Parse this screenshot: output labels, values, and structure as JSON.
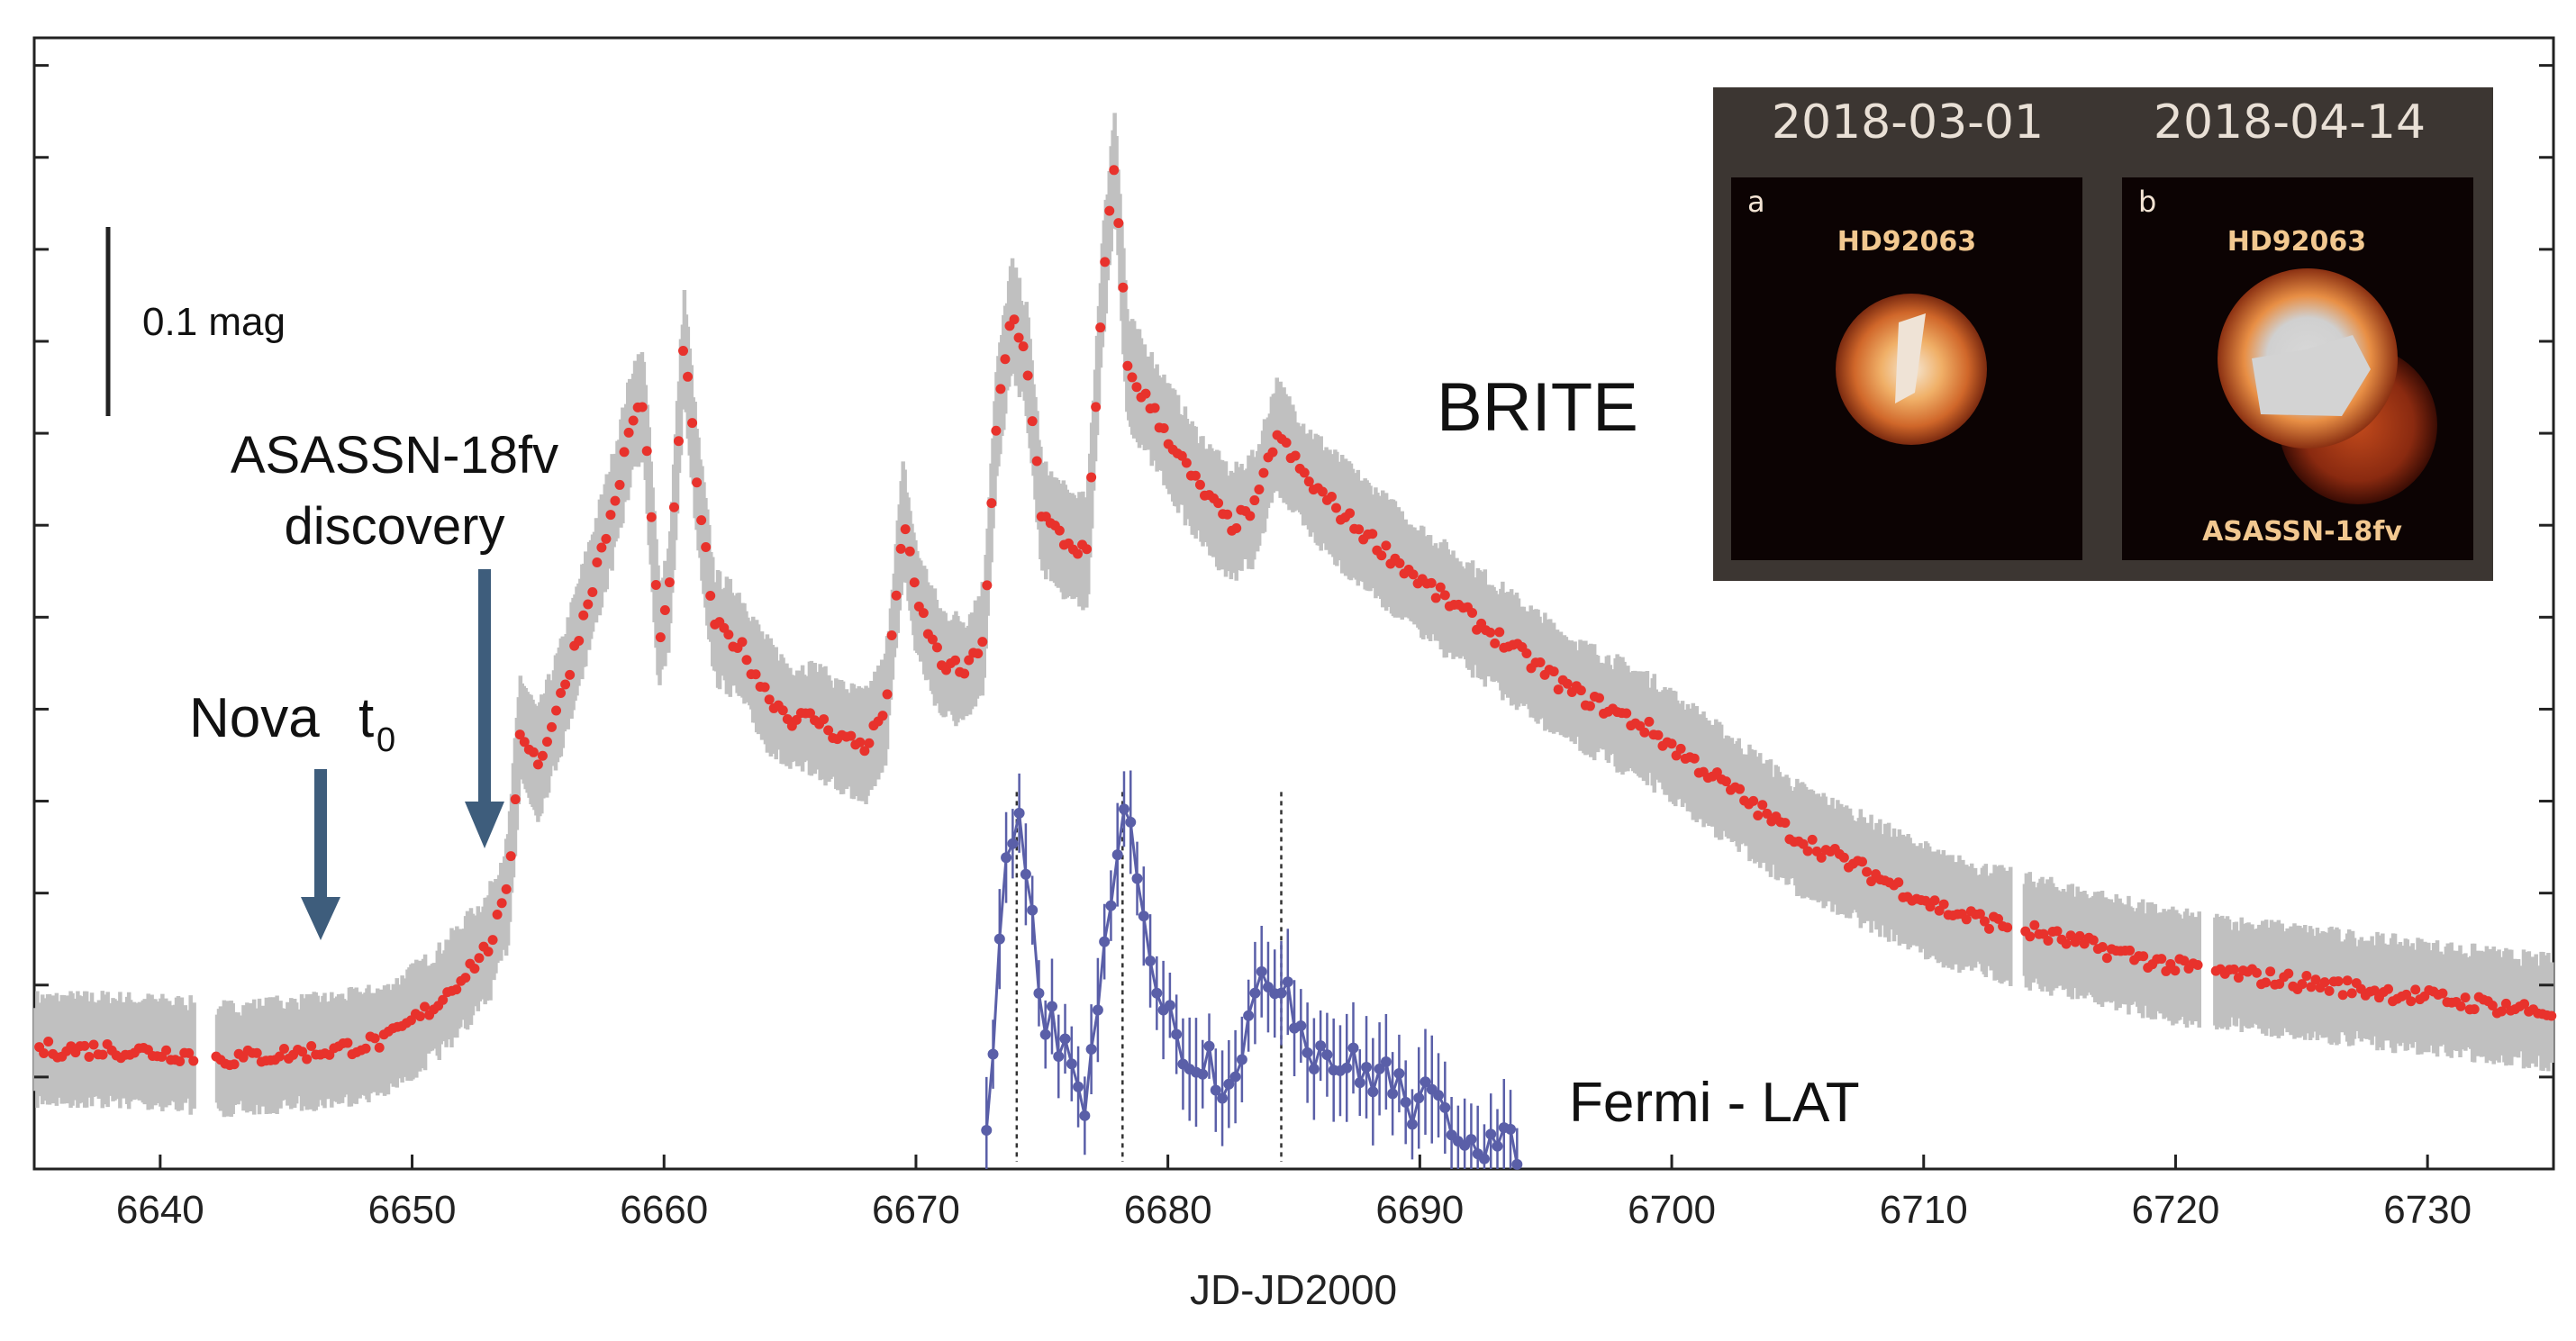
{
  "chart_data": {
    "type": "scatter",
    "xlabel": "JD-JD2000",
    "xlim": [
      6635,
      6735
    ],
    "x_ticks": [
      6640,
      6650,
      6660,
      6670,
      6680,
      6690,
      6700,
      6710,
      6720,
      6730
    ],
    "ylim": [
      0,
      1.23
    ],
    "y_axis_tick_labels": "none",
    "grid": false,
    "scale_bar_label": "0.1 mag",
    "brite_label": "BRITE",
    "fermi_label": "Fermi - LAT",
    "annotations": {
      "nova_t0": {
        "text": "Nova",
        "subscript_base": "t",
        "subscript": "0",
        "x": 6646
      },
      "discovery": {
        "line1": "ASASSN-18fv",
        "line2": "discovery",
        "x": 6653
      }
    },
    "fermi_peak_markers": [
      6674,
      6678.2,
      6684.5
    ],
    "series": [
      {
        "name": "BRITE",
        "color": "#e8322c",
        "band_color": "#c0c0c0",
        "points": [
          [
            6635,
            0.13
          ],
          [
            6638,
            0.13
          ],
          [
            6641,
            0.125
          ],
          [
            6642,
            0.12
          ],
          [
            6643,
            0.12
          ],
          [
            6645,
            0.125
          ],
          [
            6647,
            0.13
          ],
          [
            6649,
            0.14
          ],
          [
            6650,
            0.16
          ],
          [
            6651,
            0.18
          ],
          [
            6652,
            0.21
          ],
          [
            6653,
            0.24
          ],
          [
            6653.8,
            0.3
          ],
          [
            6654.3,
            0.48
          ],
          [
            6655,
            0.44
          ],
          [
            6656,
            0.52
          ],
          [
            6657,
            0.62
          ],
          [
            6658,
            0.72
          ],
          [
            6658.8,
            0.82
          ],
          [
            6659.2,
            0.83
          ],
          [
            6659.8,
            0.58
          ],
          [
            6660.2,
            0.62
          ],
          [
            6660.8,
            0.9
          ],
          [
            6661.3,
            0.75
          ],
          [
            6662,
            0.59
          ],
          [
            6663,
            0.57
          ],
          [
            6664,
            0.52
          ],
          [
            6665,
            0.49
          ],
          [
            6666,
            0.49
          ],
          [
            6667,
            0.47
          ],
          [
            6668,
            0.46
          ],
          [
            6668.8,
            0.5
          ],
          [
            6669.5,
            0.71
          ],
          [
            6670,
            0.62
          ],
          [
            6671,
            0.55
          ],
          [
            6672,
            0.54
          ],
          [
            6672.7,
            0.58
          ],
          [
            6673.2,
            0.81
          ],
          [
            6673.8,
            0.93
          ],
          [
            6674.4,
            0.88
          ],
          [
            6675,
            0.71
          ],
          [
            6676,
            0.68
          ],
          [
            6676.8,
            0.67
          ],
          [
            6677.4,
            0.95
          ],
          [
            6677.9,
            1.1
          ],
          [
            6678.4,
            0.87
          ],
          [
            6679.5,
            0.82
          ],
          [
            6681,
            0.75
          ],
          [
            6682.5,
            0.7
          ],
          [
            6683.5,
            0.72
          ],
          [
            6684.3,
            0.8
          ],
          [
            6685.5,
            0.75
          ],
          [
            6687,
            0.71
          ],
          [
            6690,
            0.64
          ],
          [
            6693,
            0.58
          ],
          [
            6696,
            0.52
          ],
          [
            6699,
            0.48
          ],
          [
            6702,
            0.42
          ],
          [
            6705,
            0.36
          ],
          [
            6708,
            0.32
          ],
          [
            6711,
            0.28
          ],
          [
            6714,
            0.26
          ],
          [
            6717,
            0.24
          ],
          [
            6720,
            0.22
          ],
          [
            6723,
            0.21
          ],
          [
            6726,
            0.2
          ],
          [
            6729,
            0.19
          ],
          [
            6732,
            0.18
          ],
          [
            6735,
            0.17
          ]
        ]
      },
      {
        "name": "Fermi - LAT",
        "color": "#5a5fa8",
        "points": [
          [
            6672.8,
            0.02
          ],
          [
            6673.4,
            0.28
          ],
          [
            6674,
            0.38
          ],
          [
            6674.4,
            0.3
          ],
          [
            6675,
            0.18
          ],
          [
            6675.6,
            0.14
          ],
          [
            6676.2,
            0.1
          ],
          [
            6676.8,
            0.08
          ],
          [
            6677.4,
            0.2
          ],
          [
            6678.2,
            0.38
          ],
          [
            6678.8,
            0.34
          ],
          [
            6679.4,
            0.22
          ],
          [
            6680,
            0.16
          ],
          [
            6680.8,
            0.13
          ],
          [
            6681.6,
            0.12
          ],
          [
            6682.4,
            0.1
          ],
          [
            6683.2,
            0.16
          ],
          [
            6684,
            0.2
          ],
          [
            6684.6,
            0.22
          ],
          [
            6685.2,
            0.16
          ],
          [
            6686,
            0.13
          ],
          [
            6686.8,
            0.12
          ],
          [
            6687.6,
            0.1
          ],
          [
            6688.4,
            0.11
          ],
          [
            6689.2,
            0.08
          ],
          [
            6690,
            0.07
          ],
          [
            6690.8,
            0.06
          ],
          [
            6691.6,
            0.05
          ],
          [
            6692.4,
            0.04
          ],
          [
            6693.2,
            0.02
          ],
          [
            6694,
            0.01
          ]
        ]
      }
    ]
  },
  "inset": {
    "left_date": "2018-03-01",
    "right_date": "2018-04-14",
    "panel_a_letter": "a",
    "panel_b_letter": "b",
    "panel_a_star": "HD92063",
    "panel_b_star": "HD92063",
    "panel_b_nova": "ASASSN-18fv"
  }
}
